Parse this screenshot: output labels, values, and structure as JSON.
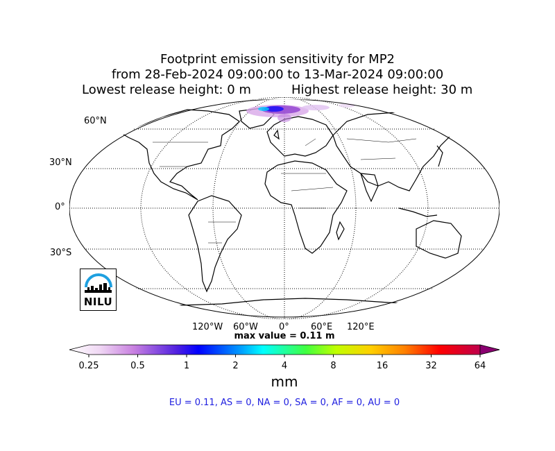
{
  "title": {
    "line1": "Footprint emission sensitivity for MP2",
    "line2": "from 28-Feb-2024 09:00:00 to 13-Mar-2024 09:00:00",
    "line3_left": "Lowest release height: 0 m",
    "line3_right": "Highest release height: 30 m"
  },
  "lat_labels": [
    "60°N",
    "30°N",
    "0°",
    "30°S"
  ],
  "lon_labels": [
    "120°W",
    "60°W",
    "0°",
    "60°E",
    "120°E"
  ],
  "max_value": "max value = 0.11 m",
  "colorbar": {
    "ticks": [
      "0.25",
      "0.5",
      "1",
      "2",
      "4",
      "8",
      "16",
      "32",
      "64"
    ],
    "unit": "mm",
    "colors": [
      "#ffffff",
      "#d8a8e8",
      "#9040d0",
      "#0000ff",
      "#00ffff",
      "#40ff40",
      "#ffd000",
      "#ff8000",
      "#ff0000",
      "#a00070"
    ]
  },
  "regions": "EU = 0.11,  AS = 0,  NA = 0,  SA = 0,  AF = 0,  AU = 0",
  "logo": {
    "text": "NILU",
    "color": "#1ea0e0"
  }
}
